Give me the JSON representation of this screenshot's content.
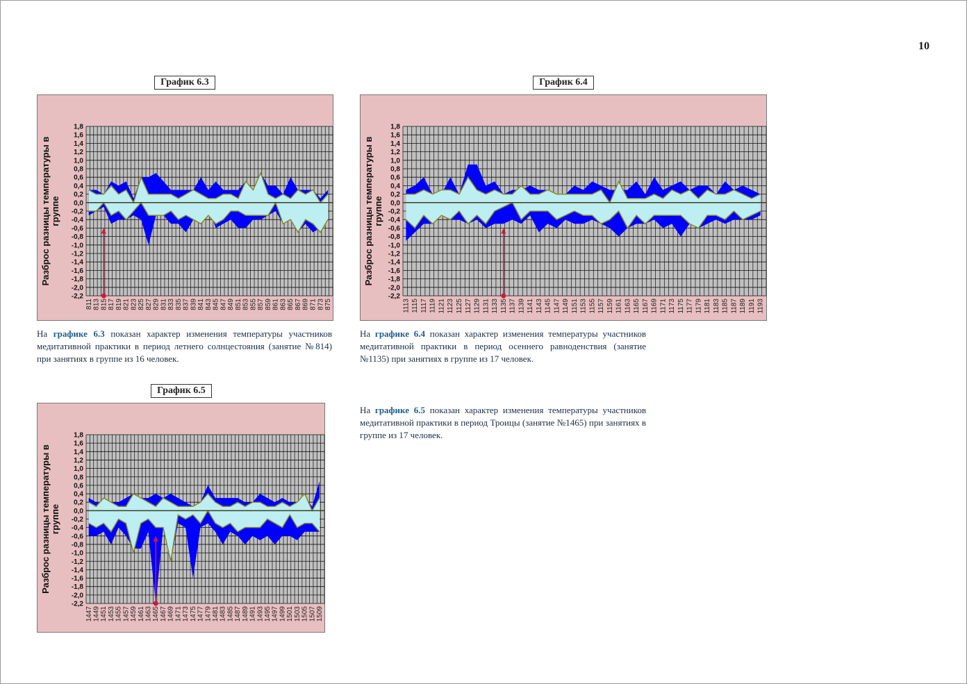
{
  "page_number": "10",
  "colors": {
    "background_pink": "#e8bfc0",
    "plot_gray": "#c0c0c0",
    "spread_blue": "#0000ff",
    "band_cyan": "#bdeef2",
    "band_outline": "#8a8a28",
    "arrow_red": "#d01840",
    "link_blue": "#1f5c8c"
  },
  "charts": [
    {
      "title": "График 6.3",
      "caption": {
        "prefix": "На ",
        "link": "графике 6.3",
        "text": " показан характер изменения температуры участников медитативной практики в период летнего солнцестояния (занятие №814) при занятиях в группе из 16 человек."
      }
    },
    {
      "title": "График 6.4",
      "caption": {
        "prefix": "На ",
        "link": "графике 6.4",
        "text": " показан характер изменения температуры участников медитативной практики в период осеннего равноденствия (занятие №1135) при занятиях в группе из 17 человек."
      }
    },
    {
      "title": "График 6.5",
      "caption": {
        "prefix": "На ",
        "link": "графике 6.5",
        "text": " показан характер изменения температуры участников медитативной практики в период Троицы (занятие №1465) при занятиях в группе из 17 человек."
      }
    }
  ],
  "chart_data": [
    {
      "type": "area",
      "ylabel": "Разброс разницы температуры в группе",
      "ylim": [
        -2.2,
        1.8
      ],
      "grid": true,
      "yticks": [
        "1,8",
        "1,6",
        "1,4",
        "1,2",
        "1,0",
        "0,8",
        "0,6",
        "0,4",
        "0,2",
        "0,0",
        "-0,2",
        "-0,4",
        "-0,6",
        "-0,8",
        "-1,0",
        "-1,2",
        "-1,4",
        "-1,6",
        "-1,8",
        "-2,0",
        "-2,2"
      ],
      "categories": [
        "811",
        "813",
        "815",
        "817",
        "819",
        "821",
        "823",
        "825",
        "827",
        "829",
        "831",
        "833",
        "835",
        "837",
        "839",
        "841",
        "843",
        "845",
        "847",
        "849",
        "851",
        "853",
        "855",
        "857",
        "859",
        "861",
        "863",
        "865",
        "867",
        "869",
        "871",
        "873",
        "875"
      ],
      "marker": {
        "category": "815",
        "from": -2.2,
        "to": -0.6
      },
      "series": [
        {
          "role": "max",
          "values": [
            0.3,
            0.3,
            0.2,
            0.5,
            0.4,
            0.5,
            0.1,
            0.6,
            0.6,
            0.7,
            0.5,
            0.3,
            0.3,
            0.3,
            0.3,
            0.6,
            0.3,
            0.5,
            0.3,
            0.3,
            0.3,
            0.5,
            0.3,
            0.7,
            0.4,
            0.4,
            0.2,
            0.6,
            0.3,
            0.3,
            0.3,
            0.1,
            0.3
          ]
        },
        {
          "role": "band_upper",
          "values": [
            0.3,
            0.2,
            0.2,
            0.4,
            0.2,
            0.3,
            0.0,
            0.6,
            0.2,
            0.2,
            0.2,
            0.2,
            0.1,
            0.2,
            0.3,
            0.2,
            0.1,
            0.1,
            0.2,
            0.2,
            0.1,
            0.5,
            0.3,
            0.7,
            0.2,
            0.1,
            0.2,
            0.1,
            0.3,
            0.2,
            0.3,
            0.0,
            0.2
          ]
        },
        {
          "role": "band_lower",
          "values": [
            -0.2,
            -0.2,
            0.0,
            -0.3,
            -0.2,
            -0.4,
            -0.2,
            0.0,
            -0.3,
            -0.3,
            -0.3,
            -0.2,
            -0.4,
            -0.3,
            -0.4,
            -0.5,
            -0.3,
            -0.5,
            -0.4,
            -0.2,
            -0.2,
            -0.3,
            -0.3,
            -0.3,
            -0.3,
            0.0,
            -0.5,
            -0.4,
            -0.7,
            -0.4,
            -0.5,
            -0.7,
            -0.4
          ]
        },
        {
          "role": "min",
          "values": [
            -0.3,
            -0.2,
            -0.1,
            -0.5,
            -0.4,
            -0.4,
            -0.3,
            -0.4,
            -1.0,
            -0.3,
            -0.3,
            -0.5,
            -0.5,
            -0.7,
            -0.4,
            -0.5,
            -0.1,
            -0.6,
            -0.5,
            -0.4,
            -0.6,
            -0.6,
            -0.4,
            -0.4,
            -0.3,
            -0.2,
            -0.5,
            -0.4,
            -0.7,
            -0.5,
            -0.7,
            -0.6,
            -0.4
          ]
        }
      ]
    },
    {
      "type": "area",
      "ylabel": "Разброс разницы температуры в группе",
      "ylim": [
        -2.2,
        1.8
      ],
      "grid": true,
      "yticks": [
        "1,8",
        "1,6",
        "1,4",
        "1,2",
        "1,0",
        "0,8",
        "0,6",
        "0,4",
        "0,2",
        "0,0",
        "-0,2",
        "-0,4",
        "-0,6",
        "-0,8",
        "-1,0",
        "-1,2",
        "-1,4",
        "-1,6",
        "-1,8",
        "-2,0",
        "-2,2"
      ],
      "categories": [
        "1113",
        "1115",
        "1117",
        "1119",
        "1121",
        "1123",
        "1125",
        "1127",
        "1129",
        "1131",
        "1133",
        "1135",
        "1137",
        "1139",
        "1141",
        "1143",
        "1145",
        "1147",
        "1149",
        "1151",
        "1153",
        "1155",
        "1157",
        "1159",
        "1161",
        "1163",
        "1165",
        "1167",
        "1169",
        "1171",
        "1173",
        "1175",
        "1177",
        "1179",
        "1181",
        "1183",
        "1185",
        "1187",
        "1189",
        "1191",
        "1193"
      ],
      "marker": {
        "category": "1135",
        "from": -2.2,
        "to": -0.6
      },
      "series": [
        {
          "role": "max",
          "values": [
            0.3,
            0.4,
            0.6,
            0.2,
            0.2,
            0.6,
            0.2,
            0.9,
            0.9,
            0.4,
            0.5,
            0.2,
            0.3,
            0.3,
            0.4,
            0.3,
            0.3,
            0.2,
            0.2,
            0.4,
            0.3,
            0.5,
            0.4,
            0.3,
            0.3,
            0.3,
            0.5,
            0.2,
            0.6,
            0.3,
            0.4,
            0.5,
            0.3,
            0.4,
            0.4,
            0.2,
            0.5,
            0.3,
            0.4,
            0.3,
            0.2
          ]
        },
        {
          "role": "band_upper",
          "values": [
            0.2,
            0.2,
            0.3,
            0.2,
            0.3,
            0.3,
            0.2,
            0.6,
            0.3,
            0.2,
            0.3,
            0.2,
            0.2,
            0.4,
            0.2,
            0.2,
            0.3,
            0.2,
            0.2,
            0.2,
            0.2,
            0.2,
            0.3,
            0.0,
            0.5,
            0.1,
            0.1,
            0.1,
            0.2,
            0.1,
            0.3,
            0.2,
            0.3,
            0.1,
            0.3,
            0.2,
            0.2,
            0.3,
            0.2,
            0.1,
            0.2
          ]
        },
        {
          "role": "band_lower",
          "values": [
            -0.4,
            -0.6,
            -0.3,
            -0.5,
            -0.3,
            -0.4,
            -0.2,
            -0.5,
            -0.3,
            -0.5,
            -0.2,
            -0.1,
            0.0,
            -0.4,
            -0.2,
            -0.2,
            -0.2,
            -0.4,
            -0.3,
            -0.2,
            -0.3,
            -0.3,
            -0.5,
            -0.4,
            -0.2,
            -0.6,
            -0.3,
            -0.5,
            -0.3,
            -0.3,
            -0.3,
            -0.3,
            -0.5,
            -0.6,
            -0.3,
            -0.3,
            -0.4,
            -0.2,
            -0.4,
            -0.3,
            -0.2
          ]
        },
        {
          "role": "min",
          "values": [
            -0.9,
            -0.7,
            -0.5,
            -0.5,
            -0.3,
            -0.4,
            -0.4,
            -0.5,
            -0.4,
            -0.6,
            -0.5,
            -0.5,
            -0.4,
            -0.5,
            -0.3,
            -0.7,
            -0.5,
            -0.6,
            -0.4,
            -0.5,
            -0.5,
            -0.4,
            -0.5,
            -0.6,
            -0.8,
            -0.6,
            -0.5,
            -0.5,
            -0.4,
            -0.6,
            -0.5,
            -0.8,
            -0.5,
            -0.6,
            -0.5,
            -0.4,
            -0.5,
            -0.4,
            -0.4,
            -0.4,
            -0.3
          ]
        }
      ]
    },
    {
      "type": "area",
      "ylabel": "Разброс разницы температуры в группе",
      "ylim": [
        -2.2,
        1.8
      ],
      "grid": true,
      "yticks": [
        "1,8",
        "1,6",
        "1,4",
        "1,2",
        "1,0",
        "0,8",
        "0,6",
        "0,4",
        "0,2",
        "0,0",
        "-0,2",
        "-0,4",
        "-0,6",
        "-0,8",
        "-1,0",
        "-1,2",
        "-1,4",
        "-1,6",
        "-1,8",
        "-2,0",
        "-2,2"
      ],
      "categories": [
        "1447",
        "1449",
        "1451",
        "1453",
        "1455",
        "1457",
        "1459",
        "1461",
        "1463",
        "1465",
        "1467",
        "1469",
        "1471",
        "1473",
        "1475",
        "1477",
        "1479",
        "1481",
        "1483",
        "1485",
        "1487",
        "1489",
        "1491",
        "1493",
        "1495",
        "1497",
        "1499",
        "1501",
        "1503",
        "1505",
        "1507",
        "1509"
      ],
      "marker": {
        "category": "1465",
        "from": -2.2,
        "to": -0.6
      },
      "series": [
        {
          "role": "max",
          "values": [
            0.3,
            0.2,
            0.2,
            0.2,
            0.2,
            0.3,
            0.4,
            0.3,
            0.3,
            0.4,
            0.3,
            0.4,
            0.3,
            0.2,
            0.1,
            0.2,
            0.6,
            0.3,
            0.3,
            0.3,
            0.3,
            0.2,
            0.2,
            0.4,
            0.3,
            0.2,
            0.3,
            0.2,
            0.2,
            0.3,
            0.1,
            0.7
          ]
        },
        {
          "role": "band_upper",
          "values": [
            0.2,
            0.1,
            0.3,
            0.2,
            0.1,
            0.1,
            0.4,
            0.3,
            0.2,
            0.1,
            0.3,
            0.2,
            0.1,
            0.1,
            0.1,
            0.2,
            0.4,
            0.2,
            0.1,
            0.1,
            0.2,
            0.1,
            0.2,
            0.2,
            0.1,
            0.1,
            0.2,
            0.1,
            0.2,
            0.4,
            0.0,
            0.3
          ]
        },
        {
          "role": "band_lower",
          "values": [
            -0.3,
            -0.4,
            -0.3,
            -0.5,
            -0.2,
            -0.3,
            -1.0,
            -0.3,
            -0.2,
            -0.4,
            -0.4,
            -1.2,
            -0.1,
            -0.2,
            -0.1,
            -0.3,
            0.0,
            -0.3,
            -0.4,
            -0.3,
            -0.5,
            -0.4,
            -0.4,
            -0.4,
            -0.2,
            -0.3,
            -0.4,
            -0.1,
            -0.4,
            -0.3,
            -0.3,
            -0.5
          ]
        },
        {
          "role": "min",
          "values": [
            -0.6,
            -0.6,
            -0.5,
            -0.8,
            -0.4,
            -0.6,
            -0.9,
            -0.9,
            -0.5,
            -2.2,
            -0.4,
            -1.2,
            -0.3,
            -0.4,
            -1.6,
            -0.4,
            -0.3,
            -0.5,
            -0.8,
            -0.5,
            -0.6,
            -0.8,
            -0.6,
            -0.7,
            -0.6,
            -0.8,
            -0.6,
            -0.6,
            -0.7,
            -0.5,
            -0.5,
            -0.5
          ]
        }
      ]
    }
  ]
}
